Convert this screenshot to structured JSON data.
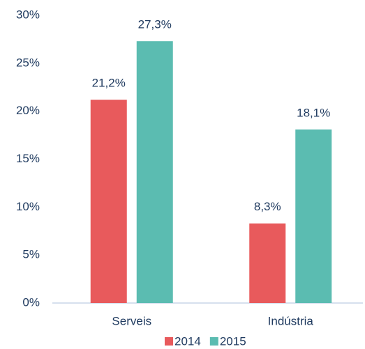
{
  "chart_data": {
    "type": "bar",
    "categories": [
      "Serveis",
      "Indústria"
    ],
    "series": [
      {
        "name": "2014",
        "color": "#e85a5c",
        "values": [
          21.2,
          8.3
        ],
        "value_labels": [
          "21,2%",
          "8,3%"
        ]
      },
      {
        "name": "2015",
        "color": "#5bbcb1",
        "values": [
          27.3,
          18.1
        ],
        "value_labels": [
          "27,3%",
          "18,1%"
        ]
      }
    ],
    "ylim": [
      0,
      30
    ],
    "yticks": [
      {
        "value": 0,
        "label": "0%"
      },
      {
        "value": 5,
        "label": "5%"
      },
      {
        "value": 10,
        "label": "10%"
      },
      {
        "value": 15,
        "label": "15%"
      },
      {
        "value": 20,
        "label": "20%"
      },
      {
        "value": 25,
        "label": "25%"
      },
      {
        "value": 30,
        "label": "30%"
      }
    ],
    "grid": false,
    "legend": "bottom"
  }
}
